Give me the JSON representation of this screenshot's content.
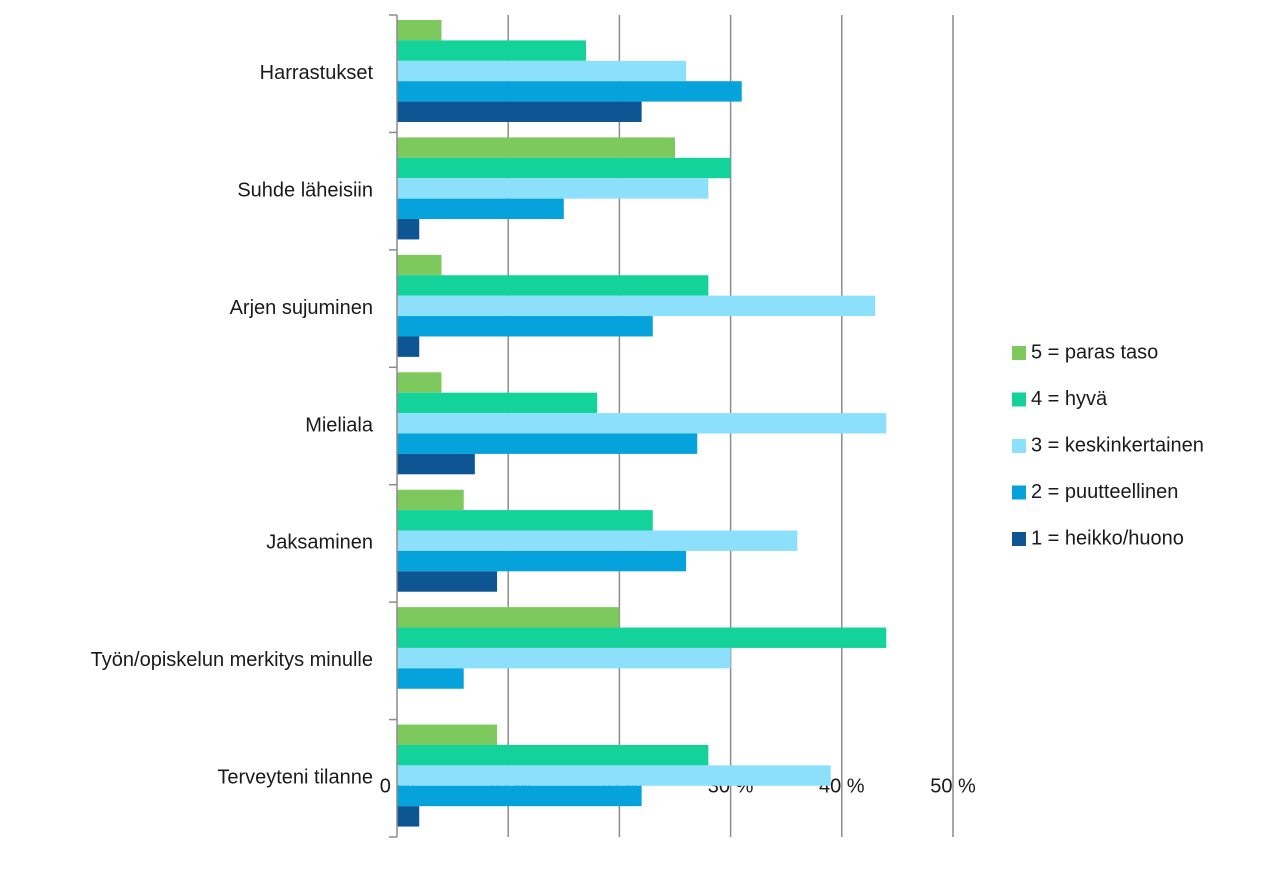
{
  "chart_data": {
    "type": "hbar",
    "categories": [
      "Harrastukset",
      "Suhde läheisiin",
      "Arjen sujuminen",
      "Mieliala",
      "Jaksaminen",
      "Työn/opiskelun merkitys minulle",
      "Terveyteni tilanne"
    ],
    "series": [
      {
        "name": "5 = paras taso",
        "color": "#7dc95e",
        "values": [
          4,
          25,
          4,
          4,
          6,
          20,
          9
        ]
      },
      {
        "name": "4 = hyvä",
        "color": "#13d29a",
        "values": [
          17,
          30,
          28,
          18,
          23,
          44,
          28
        ]
      },
      {
        "name": "3 = keskinkertainen",
        "color": "#8de0fc",
        "values": [
          26,
          28,
          43,
          44,
          36,
          30,
          39
        ]
      },
      {
        "name": "2 = puutteellinen",
        "color": "#06a2dc",
        "values": [
          31,
          15,
          23,
          27,
          26,
          6,
          22
        ]
      },
      {
        "name": "1 = heikko/huono",
        "color": "#0d5593",
        "values": [
          22,
          2,
          2,
          7,
          9,
          0,
          2
        ]
      }
    ],
    "xlim": [
      0,
      50
    ],
    "xticks": [
      {
        "value": 0,
        "label": "0 %"
      },
      {
        "value": 10,
        "label": "10 %"
      },
      {
        "value": 20,
        "label": "20 %"
      },
      {
        "value": 30,
        "label": "30 %"
      },
      {
        "value": 40,
        "label": "40 %"
      },
      {
        "value": 50,
        "label": "50 %"
      }
    ],
    "grid": true,
    "legend": "right"
  }
}
